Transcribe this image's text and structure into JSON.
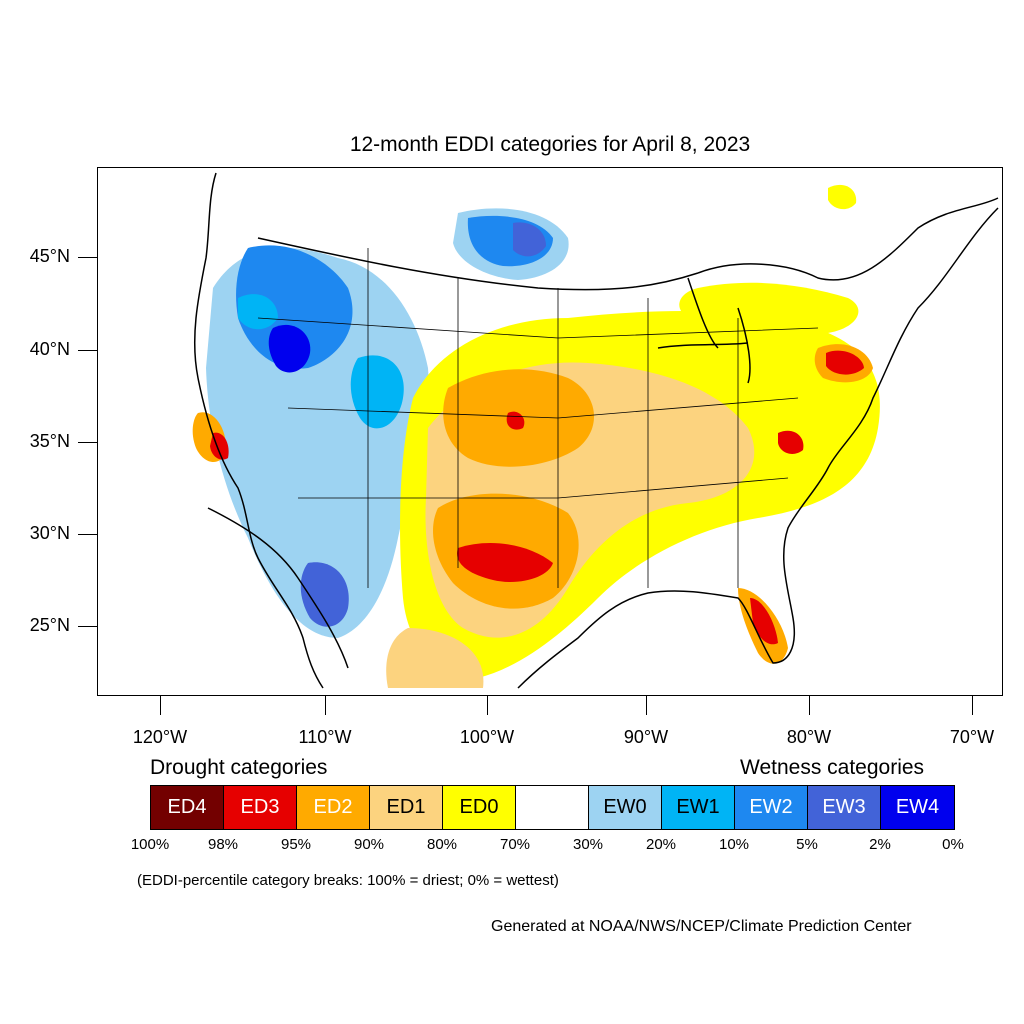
{
  "title": "12-month EDDI categories for April 8, 2023",
  "lat_labels": [
    "45°N",
    "40°N",
    "35°N",
    "30°N",
    "25°N"
  ],
  "lon_labels": [
    "120°W",
    "110°W",
    "100°W",
    "90°W",
    "80°W",
    "70°W"
  ],
  "legend": {
    "drought_heading": "Drought categories",
    "wetness_heading": "Wetness categories",
    "categories": [
      {
        "label": "ED4",
        "color": "#730000",
        "text_color": "#ffffff"
      },
      {
        "label": "ED3",
        "color": "#e60000",
        "text_color": "#ffffff"
      },
      {
        "label": "ED2",
        "color": "#ffaa00",
        "text_color": "#ffffff"
      },
      {
        "label": "ED1",
        "color": "#fcd37f",
        "text_color": "#000000"
      },
      {
        "label": "ED0",
        "color": "#ffff00",
        "text_color": "#000000"
      },
      {
        "label": "",
        "color": "#ffffff",
        "text_color": "#000000"
      },
      {
        "label": "EW0",
        "color": "#9dd3f2",
        "text_color": "#000000"
      },
      {
        "label": "EW1",
        "color": "#00b4f5",
        "text_color": "#000000"
      },
      {
        "label": "EW2",
        "color": "#1e88f0",
        "text_color": "#ffffff"
      },
      {
        "label": "EW3",
        "color": "#4263d8",
        "text_color": "#ffffff"
      },
      {
        "label": "EW4",
        "color": "#0000ee",
        "text_color": "#ffffff"
      }
    ],
    "percentiles": [
      "100%",
      "98%",
      "95%",
      "90%",
      "80%",
      "70%",
      "30%",
      "20%",
      "10%",
      "5%",
      "2%",
      "0%"
    ]
  },
  "note": "(EDDI-percentile category breaks: 100% = driest; 0% = wettest)",
  "credit": "Generated at NOAA/NWS/NCEP/Climate Prediction Center"
}
